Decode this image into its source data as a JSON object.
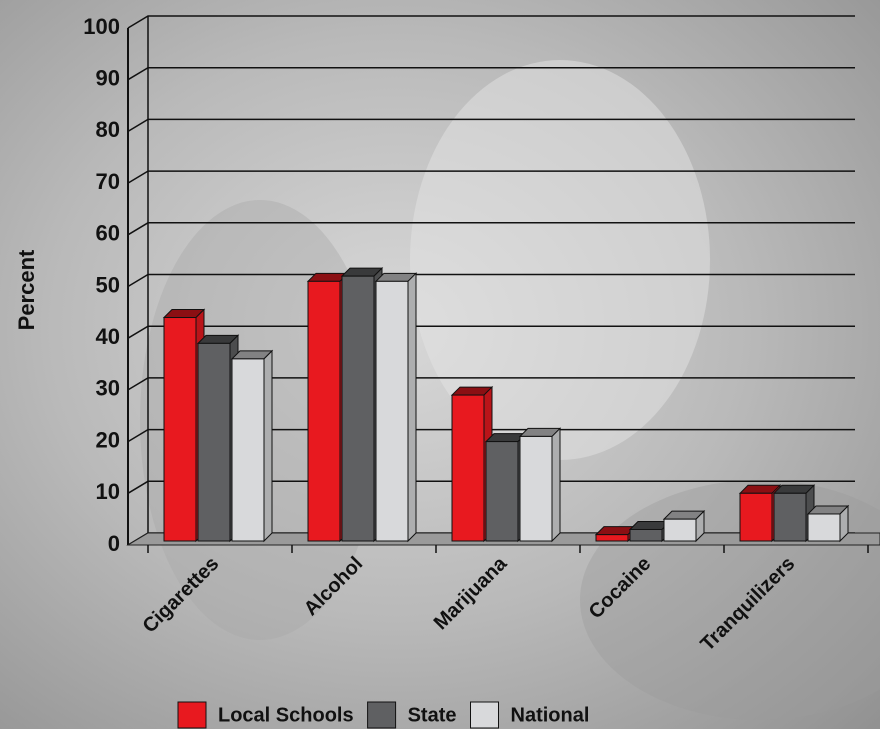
{
  "chart_data": {
    "type": "bar",
    "y_label": "Percent",
    "categories": [
      "Cigarettes",
      "Alcohol",
      "Marijuana",
      "Cocaine",
      "Tranquilizers"
    ],
    "series": [
      {
        "name": "Local Schools",
        "color": "#e8191f",
        "values": [
          44,
          51,
          29,
          2,
          10
        ]
      },
      {
        "name": "State",
        "color": "#5f6062",
        "values": [
          39,
          52,
          20,
          3,
          10
        ]
      },
      {
        "name": "National",
        "color": "#d8d9db",
        "values": [
          36,
          51,
          21,
          5,
          6
        ]
      }
    ],
    "ylim": [
      0,
      100
    ],
    "yticks": [
      0,
      10,
      20,
      30,
      40,
      50,
      60,
      70,
      80,
      90,
      100
    ],
    "grid": true,
    "legend": "bottom"
  }
}
